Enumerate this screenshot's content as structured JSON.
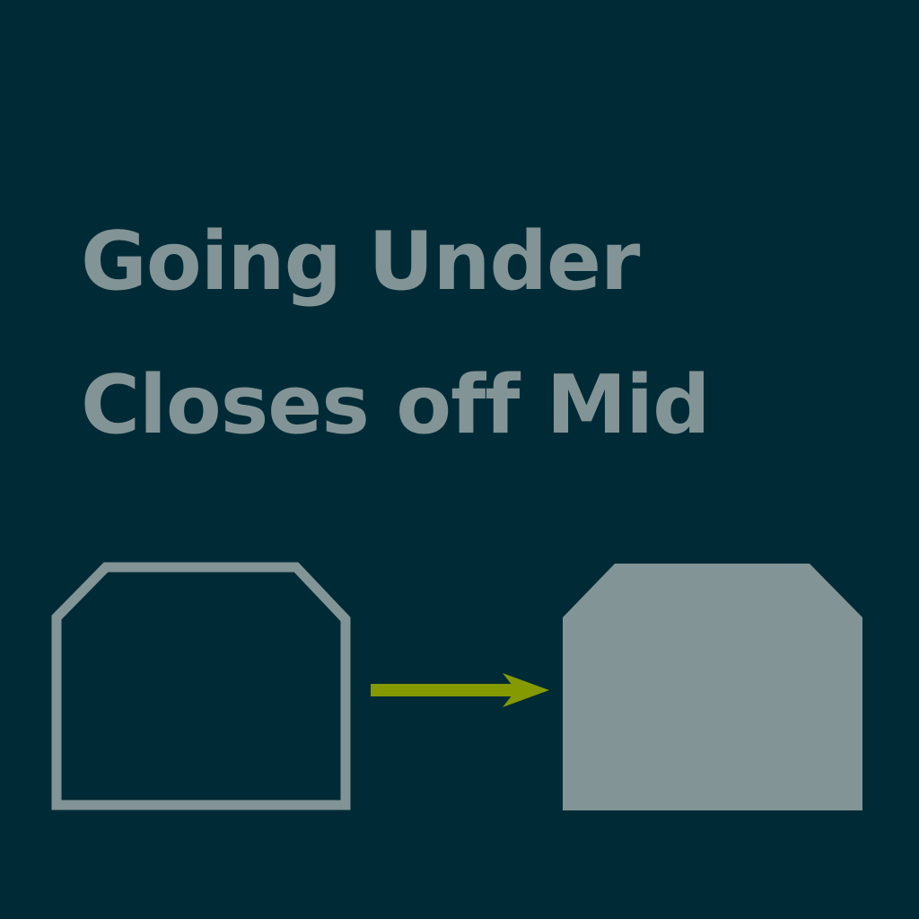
{
  "title": {
    "line1": "Going Under",
    "line2": "Closes off Mid"
  },
  "colors": {
    "background": "#002b36",
    "shape": "#839496",
    "arrow": "#859900"
  },
  "diagram": {
    "before": {
      "style": "outline"
    },
    "arrow": {
      "direction": "right"
    },
    "after": {
      "style": "filled"
    }
  }
}
